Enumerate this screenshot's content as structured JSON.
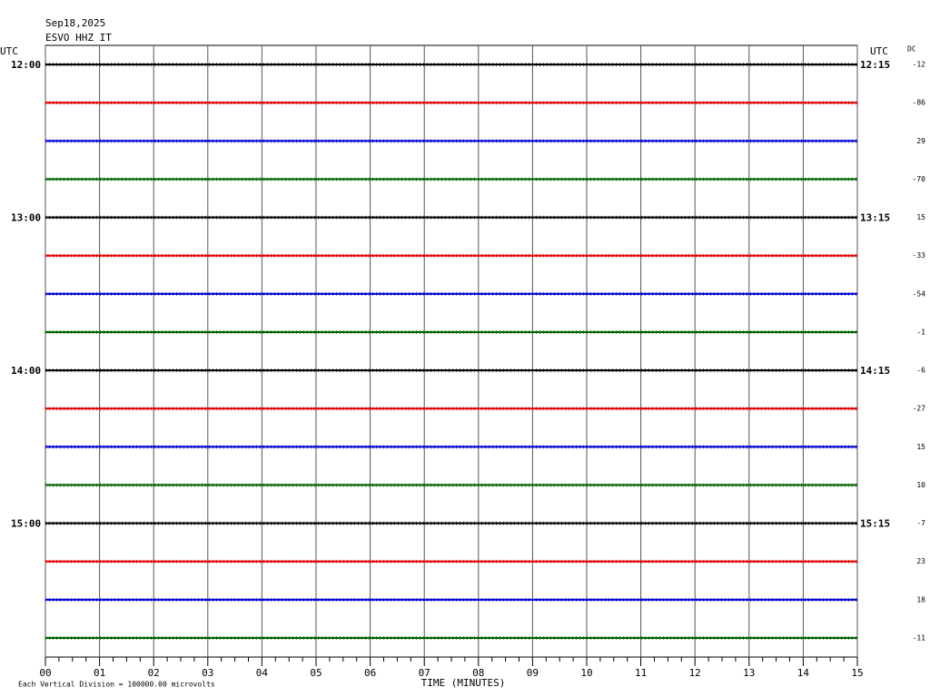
{
  "chart_data": {
    "type": "helicorder",
    "title": "Sep18,2025",
    "subtitle": "ESVO HHZ IT",
    "left_axis_label": "UTC",
    "right_axis_label": "UTC",
    "dc_label": "DC",
    "x_label": "TIME (MINUTES)",
    "scale_note": "Each Vertical Division = 100000.00 microvolts",
    "xlim": [
      0,
      15
    ],
    "xticks": [
      {
        "value": 0,
        "label": "00"
      },
      {
        "value": 1,
        "label": "01"
      },
      {
        "value": 2,
        "label": "02"
      },
      {
        "value": 3,
        "label": "03"
      },
      {
        "value": 4,
        "label": "04"
      },
      {
        "value": 5,
        "label": "05"
      },
      {
        "value": 6,
        "label": "06"
      },
      {
        "value": 7,
        "label": "07"
      },
      {
        "value": 8,
        "label": "08"
      },
      {
        "value": 9,
        "label": "09"
      },
      {
        "value": 10,
        "label": "10"
      },
      {
        "value": 11,
        "label": "11"
      },
      {
        "value": 12,
        "label": "12"
      },
      {
        "value": 13,
        "label": "13"
      },
      {
        "value": 14,
        "label": "14"
      },
      {
        "value": 15,
        "label": "15"
      }
    ],
    "rows": [
      {
        "left": "12:00",
        "right": "12:15",
        "dc": -12,
        "color": "#000000"
      },
      {
        "dc": -86,
        "color": "#e00000"
      },
      {
        "dc": 29,
        "color": "#0000d0"
      },
      {
        "dc": -70,
        "color": "#006000"
      },
      {
        "left": "13:00",
        "right": "13:15",
        "dc": 15,
        "color": "#000000"
      },
      {
        "dc": -33,
        "color": "#e00000"
      },
      {
        "dc": -54,
        "color": "#0000d0"
      },
      {
        "dc": -1,
        "color": "#006000"
      },
      {
        "left": "14:00",
        "right": "14:15",
        "dc": -6,
        "color": "#000000"
      },
      {
        "dc": -27,
        "color": "#e00000"
      },
      {
        "dc": 15,
        "color": "#0000d0"
      },
      {
        "dc": 10,
        "color": "#006000"
      },
      {
        "left": "15:00",
        "right": "15:15",
        "dc": -7,
        "color": "#000000"
      },
      {
        "dc": 23,
        "color": "#e00000"
      },
      {
        "dc": 18,
        "color": "#0000d0"
      },
      {
        "dc": -11,
        "color": "#006000"
      }
    ]
  }
}
